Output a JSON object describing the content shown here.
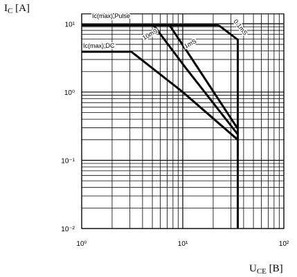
{
  "chart_data": {
    "type": "line",
    "ylabel": [
      "I",
      "C",
      " [A]"
    ],
    "xlabel": [
      "U",
      "CE",
      " [B]"
    ],
    "xscale": "log",
    "yscale": "log",
    "xlim": [
      1,
      100
    ],
    "ylim": [
      0.01,
      14
    ],
    "xticks": [
      {
        "value": 1,
        "label": "10⁰"
      },
      {
        "value": 10,
        "label": "10¹"
      },
      {
        "value": 100,
        "label": "10²"
      }
    ],
    "yticks": [
      {
        "value": 0.01,
        "label": "10⁻²"
      },
      {
        "value": 0.1,
        "label": "10⁻¹"
      },
      {
        "value": 1,
        "label": "10⁰"
      },
      {
        "value": 10,
        "label": "10¹"
      }
    ],
    "xminor": [
      2,
      3,
      4,
      5,
      6,
      7,
      8,
      9,
      20,
      30,
      40,
      50,
      60,
      70,
      80,
      90
    ],
    "yminor": [
      0.02,
      0.03,
      0.04,
      0.05,
      0.06,
      0.07,
      0.08,
      0.09,
      0.2,
      0.3,
      0.4,
      0.5,
      0.6,
      0.7,
      0.8,
      0.9,
      2,
      3,
      4,
      5,
      6,
      7,
      8,
      9
    ],
    "grid": true,
    "series": [
      {
        "name": "Ic(max),Pulse",
        "color": "#000000",
        "x": [
          1,
          22.7
        ],
        "values": [
          9.5,
          9.5
        ]
      },
      {
        "name": "0.1mS",
        "color": "#000000",
        "x": [
          22.7,
          35,
          35
        ],
        "values": [
          9.5,
          5.85,
          0.01
        ]
      },
      {
        "name": "1mS",
        "color": "#000000",
        "x": [
          7.4,
          10.6,
          35
        ],
        "values": [
          9.5,
          4.3,
          0.29
        ]
      },
      {
        "name": "10mS",
        "color": "#000000",
        "x": [
          5.16,
          10.6,
          35
        ],
        "values": [
          9.5,
          2.3,
          0.24
        ]
      },
      {
        "name": "Ic(max),DC",
        "color": "#000000",
        "x": [
          1,
          3.1,
          10,
          35
        ],
        "values": [
          3.9,
          3.9,
          1.0,
          0.2
        ]
      }
    ]
  }
}
